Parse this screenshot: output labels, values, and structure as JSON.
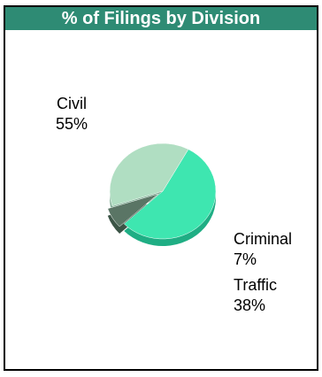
{
  "chart_data": {
    "type": "pie",
    "title": "% of Filings by Division",
    "slices": [
      {
        "label": "Civil",
        "value": 55,
        "value_label": "55%",
        "color": "#3ee6b0"
      },
      {
        "label": "Criminal",
        "value": 7,
        "value_label": "7%",
        "color": "#5a7565"
      },
      {
        "label": "Traffic",
        "value": 38,
        "value_label": "38%",
        "color": "#b0dec2"
      }
    ]
  }
}
